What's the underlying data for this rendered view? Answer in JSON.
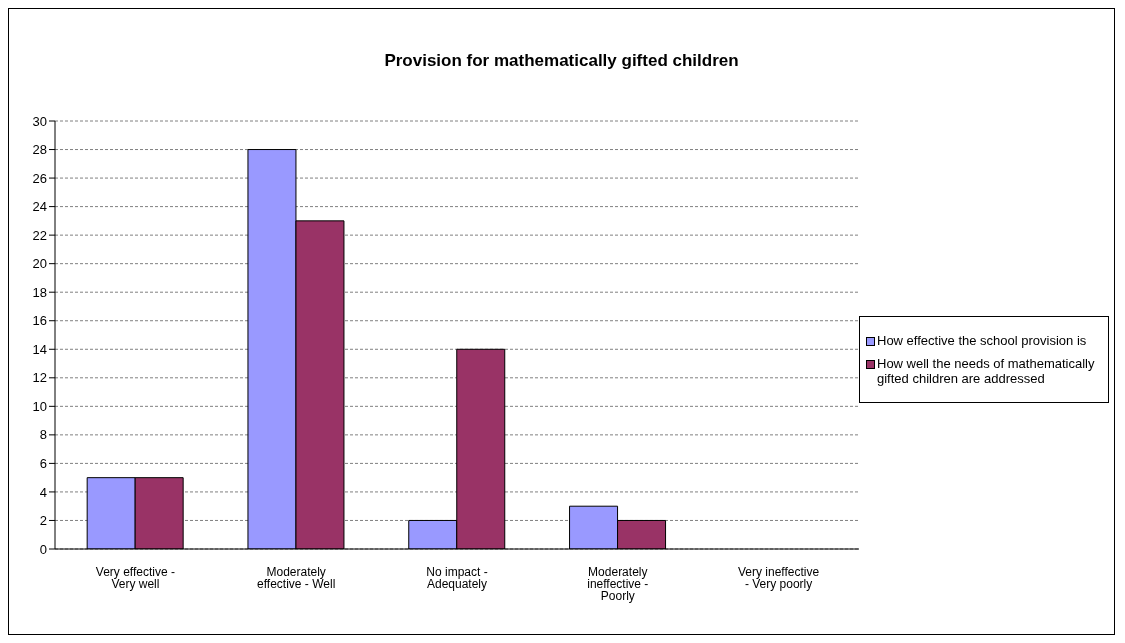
{
  "chart_data": {
    "type": "bar",
    "title": "Provision for mathematically gifted children",
    "categories": [
      "Very effective - Very well",
      "Moderately effective - Well",
      "No impact - Adequately",
      "Moderately ineffective - Poorly",
      "Very ineffective - Very poorly"
    ],
    "series": [
      {
        "name": "How effective the school provision is",
        "color": "#9999ff",
        "values": [
          5,
          28,
          2,
          3,
          0
        ]
      },
      {
        "name": "How well the needs of mathematically gifted children are addressed",
        "color": "#993366",
        "values": [
          5,
          23,
          14,
          2,
          0
        ]
      }
    ],
    "ylim": [
      0,
      30
    ],
    "yticks": [
      0,
      2,
      4,
      6,
      8,
      10,
      12,
      14,
      16,
      18,
      20,
      22,
      24,
      26,
      28,
      30
    ],
    "grid": "y",
    "legend": "right"
  }
}
